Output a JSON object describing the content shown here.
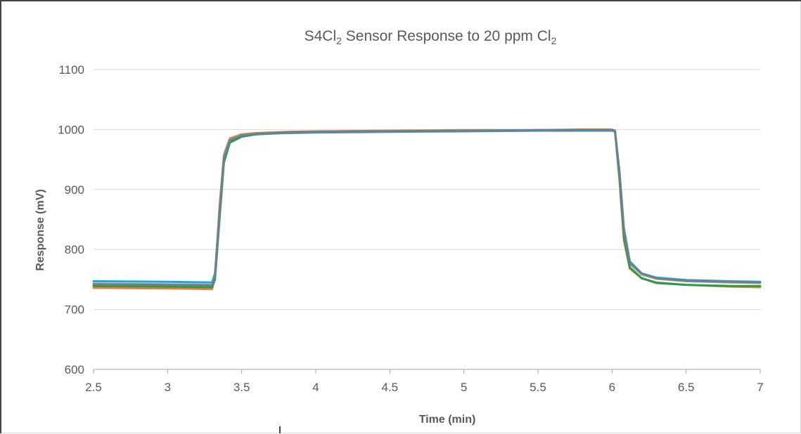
{
  "chart_data": {
    "type": "line",
    "title": "S4Cl₂ Sensor Response to 20 ppm Cl₂",
    "title_parts": {
      "a": "S4Cl",
      "sub1": "2",
      "b": " Sensor Response to 20 ppm Cl",
      "sub2": "2"
    },
    "xlabel": "Time (min)",
    "ylabel": "Response (mV)",
    "xlim": [
      2.5,
      7
    ],
    "ylim": [
      600,
      1100
    ],
    "xticks": [
      "2.5",
      "3",
      "3.5",
      "4",
      "4.5",
      "5",
      "5.5",
      "6",
      "6.5",
      "7"
    ],
    "yticks": [
      "600",
      "700",
      "800",
      "900",
      "1000",
      "1100"
    ],
    "grid": "horizontal",
    "legend": "none",
    "series": [
      {
        "color": "#1aa7e0",
        "x": [
          2.5,
          3.0,
          3.3,
          3.32,
          3.35,
          3.38,
          3.42,
          3.5,
          3.6,
          3.8,
          4.0,
          4.5,
          5.0,
          5.5,
          5.8,
          6.0,
          6.02,
          6.05,
          6.08,
          6.12,
          6.2,
          6.3,
          6.5,
          6.8,
          7.0
        ],
        "y": [
          747,
          746,
          745,
          760,
          860,
          950,
          980,
          989,
          992,
          994,
          995,
          996,
          997,
          998,
          998,
          998,
          997,
          930,
          835,
          780,
          760,
          753,
          749,
          747,
          746
        ]
      },
      {
        "color": "#ed7d31",
        "x": [
          2.5,
          3.0,
          3.3,
          3.32,
          3.35,
          3.38,
          3.42,
          3.5,
          3.6,
          3.8,
          4.0,
          4.5,
          5.0,
          5.5,
          5.8,
          6.0,
          6.02,
          6.05,
          6.08,
          6.12,
          6.2,
          6.3,
          6.5,
          6.8,
          7.0
        ],
        "y": [
          736,
          735,
          734,
          752,
          870,
          958,
          985,
          992,
          994,
          996,
          997,
          998,
          999,
          999,
          1000,
          1000,
          998,
          915,
          815,
          768,
          752,
          745,
          741,
          738,
          737
        ]
      },
      {
        "color": "#a5a5a5",
        "x": [
          2.5,
          3.0,
          3.3,
          3.32,
          3.35,
          3.38,
          3.42,
          3.5,
          3.6,
          3.8,
          4.0,
          4.5,
          5.0,
          5.5,
          5.8,
          6.0,
          6.02,
          6.05,
          6.08,
          6.12,
          6.2,
          6.3,
          6.5,
          6.8,
          7.0
        ],
        "y": [
          743,
          742,
          741,
          756,
          865,
          955,
          983,
          991,
          993,
          995,
          996,
          997,
          998,
          999,
          999,
          999,
          998,
          925,
          828,
          776,
          758,
          751,
          747,
          745,
          744
        ]
      },
      {
        "color": "#22a04c",
        "x": [
          2.5,
          3.0,
          3.3,
          3.32,
          3.35,
          3.38,
          3.42,
          3.5,
          3.6,
          3.8,
          4.0,
          4.5,
          5.0,
          5.5,
          5.8,
          6.0,
          6.02,
          6.05,
          6.08,
          6.12,
          6.2,
          6.3,
          6.5,
          6.8,
          7.0
        ],
        "y": [
          739,
          738,
          737,
          750,
          850,
          945,
          978,
          988,
          992,
          995,
          996,
          997,
          998,
          999,
          999,
          999,
          998,
          920,
          820,
          770,
          752,
          744,
          741,
          739,
          739
        ]
      },
      {
        "color": "#6f7f8f",
        "x": [
          2.5,
          3.0,
          3.3,
          3.32,
          3.35,
          3.38,
          3.42,
          3.5,
          3.6,
          3.8,
          4.0,
          4.5,
          5.0,
          5.5,
          5.8,
          6.0,
          6.02,
          6.05,
          6.08,
          6.12,
          6.2,
          6.3,
          6.5,
          6.8,
          7.0
        ],
        "y": [
          742,
          741,
          740,
          755,
          862,
          952,
          982,
          990,
          993,
          995,
          996,
          997,
          998,
          999,
          999,
          999,
          998,
          928,
          832,
          778,
          760,
          752,
          748,
          746,
          745
        ]
      }
    ]
  }
}
